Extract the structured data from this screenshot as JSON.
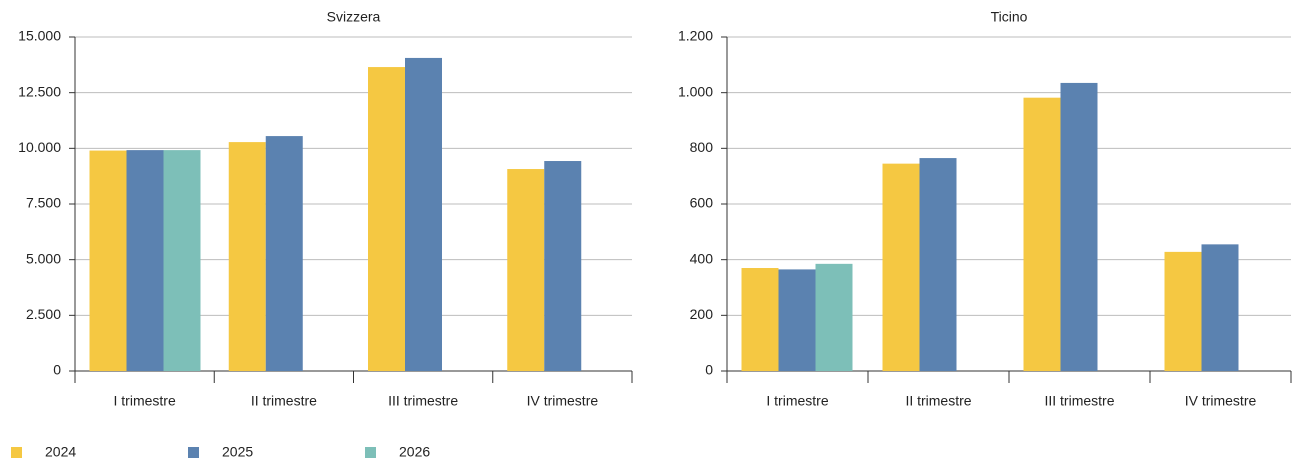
{
  "chart_data": [
    {
      "type": "bar",
      "title": "Svizzera",
      "categories": [
        "I trimestre",
        "II trimestre",
        "III trimestre",
        "IV trimestre"
      ],
      "series": [
        {
          "name": "2024",
          "color": "#f5c842",
          "values": [
            9900,
            10280,
            13650,
            9070
          ]
        },
        {
          "name": "2025",
          "color": "#5b82b0",
          "values": [
            9920,
            10550,
            14060,
            9430
          ]
        },
        {
          "name": "2026",
          "color": "#7dbfb8",
          "values": [
            9920,
            null,
            null,
            null
          ]
        }
      ],
      "ylim": [
        0,
        15000
      ],
      "yticks": [
        0,
        {
          "value": 2500,
          "label": "2.500"
        },
        {
          "value": 5000,
          "label": "5.000"
        },
        {
          "value": 7500,
          "label": "7.500"
        },
        {
          "value": 10000,
          "label": "10.000"
        },
        {
          "value": 12500,
          "label": "12.500"
        },
        {
          "value": 15000,
          "label": "15.000"
        }
      ],
      "grid": true
    },
    {
      "type": "bar",
      "title": "Ticino",
      "categories": [
        "I trimestre",
        "II trimestre",
        "III trimestre",
        "IV trimestre"
      ],
      "series": [
        {
          "values": [
            370,
            745,
            982,
            428
          ]
        },
        {
          "values": [
            365,
            765,
            1035,
            455
          ]
        },
        {
          "values": [
            385,
            null,
            null,
            null
          ]
        }
      ],
      "ylim": [
        0,
        1200
      ],
      "yticks": [
        0,
        200,
        400,
        600,
        800,
        {
          "value": 1000,
          "label": "1.000"
        },
        {
          "value": 1200,
          "label": "1.200"
        }
      ],
      "grid": true
    }
  ]
}
